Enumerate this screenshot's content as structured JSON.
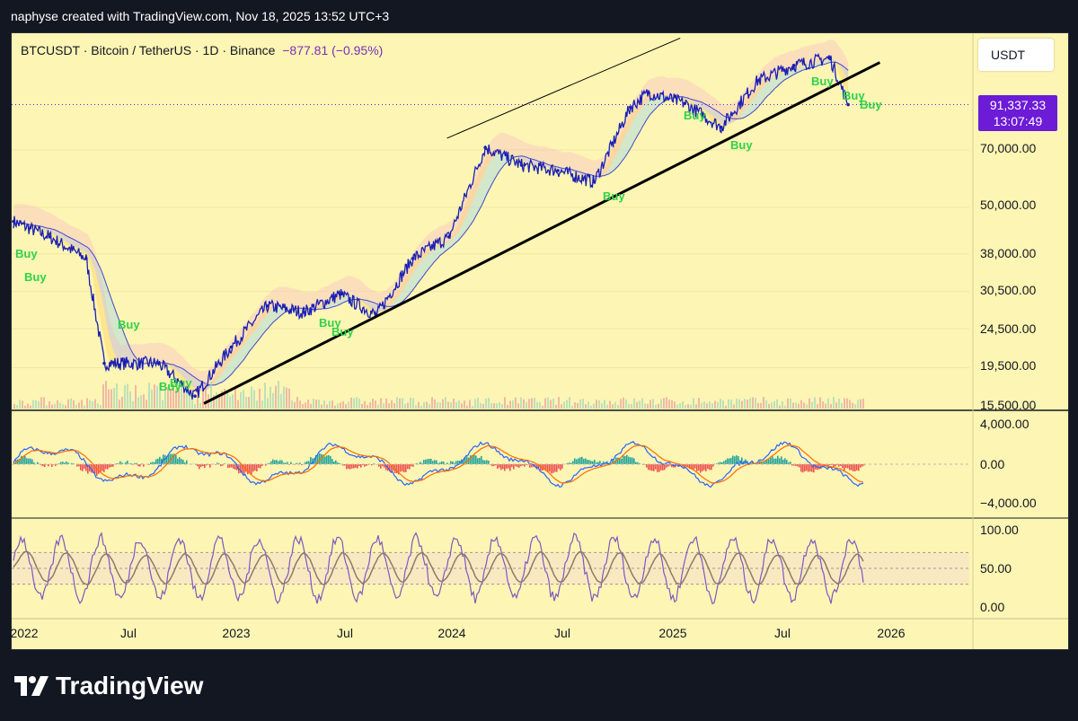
{
  "header": {
    "attribution": "naphyse created with TradingView.com, Nov 18, 2025 13:52 UTC+3"
  },
  "symbol": {
    "text": "BTCUSDT · Bitcoin / TetherUS · 1D · Binance",
    "change": "−877.81 (−0.95%)"
  },
  "currency_label": "USDT",
  "last_price": {
    "price": "91,337.33",
    "countdown": "13:07:49"
  },
  "brand": {
    "name": "TradingView"
  },
  "colors": {
    "background": "#fdf5b3",
    "candle": "#1a1fb5",
    "trendline": "#000000",
    "buy_signal": "#2fd24a",
    "price_tag": "#6c1bd6",
    "macd_line": "#2962ff",
    "signal_line": "#ff6d00",
    "rsi_line": "#7e57c2",
    "rsi_mid": "#8d7b68"
  },
  "chart_data": [
    {
      "type": "line",
      "title": "BTCUSDT · Bitcoin / TetherUS · 1D · Binance",
      "scale": "log",
      "y_ticks": [
        "70,000.00",
        "50,000.00",
        "38,000.00",
        "30,500.00",
        "24,500.00",
        "19,500.00",
        "15,500.00"
      ],
      "x_ticks": [
        "2022",
        "Jul",
        "2023",
        "Jul",
        "2024",
        "Jul",
        "2025",
        "Jul",
        "2026"
      ],
      "last_price": 91337.33,
      "x": [
        "2022-01",
        "2022-03",
        "2022-05",
        "2022-06",
        "2022-09",
        "2022-11",
        "2023-01",
        "2023-03",
        "2023-05",
        "2023-07",
        "2023-09",
        "2023-11",
        "2024-01",
        "2024-03",
        "2024-05",
        "2024-07",
        "2024-09",
        "2024-11",
        "2024-12",
        "2025-02",
        "2025-04",
        "2025-06",
        "2025-08",
        "2025-10",
        "2025-11"
      ],
      "series": [
        {
          "values": [
            46000,
            42000,
            37000,
            20000,
            20000,
            16500,
            22000,
            28000,
            27000,
            30000,
            26500,
            37000,
            42000,
            71000,
            64000,
            62000,
            58000,
            90000,
            98000,
            92000,
            80000,
            105000,
            115000,
            120000,
            91337
          ]
        }
      ],
      "annotations": {
        "buy_labels": [
          "Buy",
          "Buy",
          "Buy",
          "Buy",
          "Buy",
          "Buy",
          "Buy",
          "Buy",
          "Buy",
          "Buy",
          "Buy",
          "Buy",
          "Buy"
        ]
      }
    },
    {
      "type": "line",
      "y_ticks": [
        "4,000.00",
        "0.00",
        "−4,000.00"
      ],
      "ylim": [
        -5000,
        5000
      ]
    },
    {
      "type": "line",
      "y_ticks": [
        "100.00",
        "50.00",
        "0.00"
      ],
      "ylim": [
        0,
        100
      ]
    }
  ]
}
